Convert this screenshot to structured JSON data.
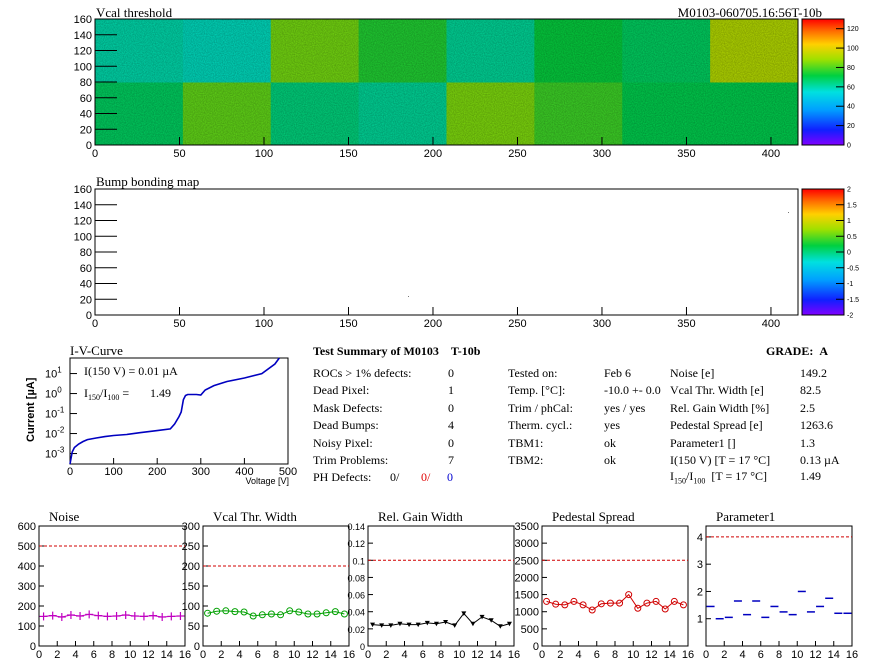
{
  "header": {
    "module_id": "M0103-060705.16:56T-10b"
  },
  "chart_data": [
    {
      "type": "heatmap",
      "title": "Vcal threshold",
      "xlim": [
        0,
        416
      ],
      "ylim": [
        0,
        160
      ],
      "x_ticks": [
        0,
        50,
        100,
        150,
        200,
        250,
        300,
        350,
        400
      ],
      "y_ticks": [
        0,
        20,
        40,
        60,
        80,
        100,
        120,
        140,
        160
      ],
      "colorbar_ticks": [
        0,
        20,
        40,
        60,
        80,
        100,
        120
      ],
      "roc_mean_values": [
        [
          68,
          82,
          65,
          62,
          85,
          78,
          70,
          70
        ],
        [
          60,
          58,
          84,
          75,
          62,
          72,
          68,
          92
        ]
      ]
    },
    {
      "type": "heatmap",
      "title": "Bump bonding map",
      "xlim": [
        0,
        416
      ],
      "ylim": [
        0,
        160
      ],
      "x_ticks": [
        0,
        50,
        100,
        150,
        200,
        250,
        300,
        350,
        400
      ],
      "y_ticks": [
        0,
        20,
        40,
        60,
        80,
        100,
        120,
        140,
        160
      ],
      "colorbar_ticks": [
        -2,
        -1.5,
        -1,
        -0.5,
        0,
        0.5,
        1,
        1.5,
        2
      ]
    },
    {
      "type": "line",
      "title": "I-V-Curve",
      "xlabel": "Voltage [V]",
      "ylabel": "Current [µA]",
      "log_y": true,
      "xlim": [
        0,
        500
      ],
      "ylim": [
        0.0003,
        60
      ],
      "x_ticks": [
        0,
        100,
        200,
        300,
        400,
        500
      ],
      "annotation_i": "I(150 V) = 0.01 µA",
      "annotation_ratio": "1.49",
      "x": [
        0,
        5,
        10,
        20,
        30,
        40,
        60,
        80,
        100,
        130,
        160,
        200,
        230,
        240,
        250,
        255,
        260,
        265,
        270,
        290,
        300,
        310,
        330,
        360,
        400,
        440,
        470,
        480
      ],
      "y": [
        0.0003,
        0.0012,
        0.002,
        0.003,
        0.004,
        0.005,
        0.006,
        0.007,
        0.008,
        0.009,
        0.011,
        0.014,
        0.017,
        0.03,
        0.07,
        0.12,
        0.5,
        0.8,
        0.9,
        0.9,
        0.85,
        1.5,
        2.5,
        4,
        6,
        10,
        30,
        60
      ]
    },
    {
      "type": "scatter",
      "title": "Noise",
      "xlim": [
        0,
        16
      ],
      "ylim": [
        0,
        600
      ],
      "x_ticks": [
        0,
        2,
        4,
        6,
        8,
        10,
        12,
        14,
        16
      ],
      "y_ticks": [
        0,
        100,
        200,
        300,
        400,
        500,
        600
      ],
      "threshold": 500,
      "color": "#c000c0",
      "x": [
        0.5,
        1.5,
        2.5,
        3.5,
        4.5,
        5.5,
        6.5,
        7.5,
        8.5,
        9.5,
        10.5,
        11.5,
        12.5,
        13.5,
        14.5,
        15.5
      ],
      "y": [
        148,
        152,
        145,
        155,
        150,
        158,
        152,
        148,
        150,
        155,
        150,
        148,
        152,
        145,
        148,
        150
      ]
    },
    {
      "type": "scatter",
      "title": "Vcal Thr. Width",
      "xlim": [
        0,
        16
      ],
      "ylim": [
        0,
        300
      ],
      "x_ticks": [
        0,
        2,
        4,
        6,
        8,
        10,
        12,
        14,
        16
      ],
      "y_ticks": [
        0,
        50,
        100,
        150,
        200,
        250,
        300
      ],
      "threshold": 200,
      "color": "#00a000",
      "x": [
        0.5,
        1.5,
        2.5,
        3.5,
        4.5,
        5.5,
        6.5,
        7.5,
        8.5,
        9.5,
        10.5,
        11.5,
        12.5,
        13.5,
        14.5,
        15.5
      ],
      "y": [
        82,
        87,
        88,
        86,
        85,
        75,
        78,
        80,
        78,
        88,
        85,
        80,
        80,
        83,
        86,
        80
      ]
    },
    {
      "type": "scatter",
      "title": "Rel. Gain Width",
      "xlim": [
        0,
        16
      ],
      "ylim": [
        0,
        0.14
      ],
      "x_ticks": [
        0,
        2,
        4,
        6,
        8,
        10,
        12,
        14,
        16
      ],
      "y_ticks": [
        0,
        0.02,
        0.04,
        0.06,
        0.08,
        0.1,
        0.12,
        0.14
      ],
      "threshold": 0.1,
      "color": "#000000",
      "x": [
        0.5,
        1.5,
        2.5,
        3.5,
        4.5,
        5.5,
        6.5,
        7.5,
        8.5,
        9.5,
        10.5,
        11.5,
        12.5,
        13.5,
        14.5,
        15.5
      ],
      "y": [
        0.025,
        0.024,
        0.024,
        0.026,
        0.025,
        0.025,
        0.027,
        0.026,
        0.028,
        0.024,
        0.038,
        0.026,
        0.034,
        0.03,
        0.023,
        0.026
      ]
    },
    {
      "type": "scatter",
      "title": "Pedestal Spread",
      "xlim": [
        0,
        16
      ],
      "ylim": [
        0,
        3500
      ],
      "x_ticks": [
        0,
        2,
        4,
        6,
        8,
        10,
        12,
        14,
        16
      ],
      "y_ticks": [
        0,
        500,
        1000,
        1500,
        2000,
        2500,
        3000,
        3500
      ],
      "threshold": 2500,
      "color": "#d00000",
      "x": [
        0.5,
        1.5,
        2.5,
        3.5,
        4.5,
        5.5,
        6.5,
        7.5,
        8.5,
        9.5,
        10.5,
        11.5,
        12.5,
        13.5,
        14.5,
        15.5
      ],
      "y": [
        1300,
        1220,
        1200,
        1300,
        1200,
        1050,
        1230,
        1250,
        1250,
        1500,
        1100,
        1250,
        1300,
        1080,
        1300,
        1200
      ]
    },
    {
      "type": "scatter",
      "title": "Parameter1",
      "xlim": [
        0,
        16
      ],
      "ylim": [
        0,
        4.4
      ],
      "x_ticks": [
        0,
        2,
        4,
        6,
        8,
        10,
        12,
        14,
        16
      ],
      "y_ticks": [
        1,
        2,
        3,
        4
      ],
      "threshold": 4,
      "color": "#0000c0",
      "x": [
        0.5,
        1.5,
        2.5,
        3.5,
        4.5,
        5.5,
        6.5,
        7.5,
        8.5,
        9.5,
        10.5,
        11.5,
        12.5,
        13.5,
        14.5,
        15.5
      ],
      "y": [
        1.45,
        1.0,
        1.05,
        1.65,
        1.15,
        1.65,
        1.05,
        1.45,
        1.25,
        1.15,
        2.0,
        1.25,
        1.45,
        1.75,
        1.2,
        1.2
      ]
    }
  ],
  "summary": {
    "title": "Test Summary of M0103",
    "test": "T-10b",
    "grade_label": "GRADE:",
    "grade": "A",
    "left_rows": [
      {
        "label": "ROCs > 1% defects:",
        "value": "0"
      },
      {
        "label": "Dead Pixel:",
        "value": "1"
      },
      {
        "label": "Mask Defects:",
        "value": "0"
      },
      {
        "label": "Dead Bumps:",
        "value": "4"
      },
      {
        "label": "Noisy Pixel:",
        "value": "0"
      },
      {
        "label": "Trim Problems:",
        "value": "7"
      }
    ],
    "ph_label": "PH Defects:",
    "ph_values": [
      "0/",
      "0/",
      "0"
    ],
    "middle_rows": [
      {
        "label": "Tested on:",
        "value": "Feb 6"
      },
      {
        "label": "Temp. [°C]:",
        "value": "-10.0 +- 0.0"
      },
      {
        "label": "Trim / phCal:",
        "value": "yes / yes"
      },
      {
        "label": "Therm. cycl.:",
        "value": "yes"
      },
      {
        "label": "TBM1:",
        "value": "ok"
      },
      {
        "label": "TBM2:",
        "value": "ok"
      }
    ],
    "right_rows": [
      {
        "label": "Noise [e]",
        "value": "149.2"
      },
      {
        "label": "Vcal Thr. Width [e]",
        "value": "82.5"
      },
      {
        "label": "Rel. Gain Width [%]",
        "value": "2.5"
      },
      {
        "label": "Pedestal Spread [e]",
        "value": "1263.6"
      },
      {
        "label": "Parameter1 []",
        "value": "1.3"
      },
      {
        "label": "I(150 V) [T = 17 °C]",
        "value": "0.13 µA"
      }
    ],
    "ratio_label": "[T = 17 °C]",
    "ratio_value": "1.49"
  }
}
